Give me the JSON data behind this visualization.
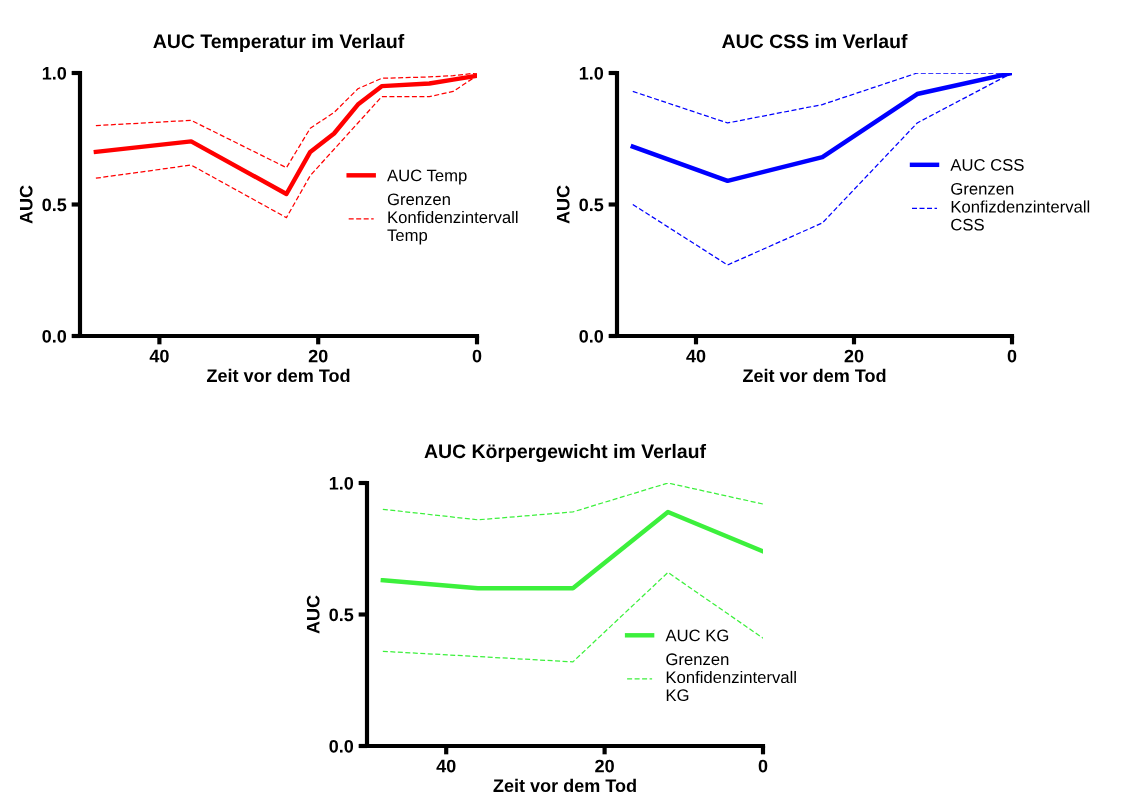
{
  "chart_data": [
    {
      "type": "line",
      "title": "AUC Temperatur im Verlauf",
      "xlabel": "Zeit vor dem Tod",
      "ylabel": "AUC",
      "xlim": [
        50,
        0
      ],
      "xticks": [
        40,
        20,
        0
      ],
      "ylim": [
        0,
        1
      ],
      "yticks": [
        {
          "value": 0,
          "label": "0.0"
        },
        {
          "value": 0.5,
          "label": "0.5"
        },
        {
          "value": 1,
          "label": "1.0"
        }
      ],
      "grid": false,
      "legend": "right",
      "marker": "none",
      "x": [
        48,
        36,
        24,
        21,
        18,
        15,
        12,
        6,
        3,
        0
      ],
      "series": [
        {
          "name": "AUC Temp",
          "color": "#ff0000",
          "line_style": "solid",
          "values": [
            0.7,
            0.74,
            0.54,
            0.7,
            0.77,
            0.88,
            0.95,
            0.96,
            0.975,
            0.99
          ]
        },
        {
          "name": "Grenzen\nKonfidenzintervall\nTemp",
          "color": "#ff0000",
          "line_style": "dashed",
          "values": [
            0.8,
            0.82,
            0.64,
            0.79,
            0.85,
            0.94,
            0.98,
            0.985,
            0.99,
            1.0
          ]
        },
        {
          "color": "#ff0000",
          "line_style": "dashed",
          "values": [
            0.6,
            0.65,
            0.45,
            0.61,
            0.71,
            0.81,
            0.91,
            0.91,
            0.93,
            0.99
          ]
        }
      ]
    },
    {
      "type": "line",
      "title": "AUC CSS im Verlauf",
      "xlabel": "Zeit vor dem Tod",
      "ylabel": "AUC",
      "xlim": [
        50,
        0
      ],
      "xticks": [
        40,
        20,
        0
      ],
      "ylim": [
        0,
        1
      ],
      "yticks": [
        {
          "value": 0,
          "label": "0.0"
        },
        {
          "value": 0.5,
          "label": "0.5"
        },
        {
          "value": 1,
          "label": "1.0"
        }
      ],
      "grid": false,
      "legend": "right",
      "marker": "none",
      "x": [
        48,
        36,
        24,
        12,
        0
      ],
      "series": [
        {
          "name": "AUC CSS",
          "color": "#0000ff",
          "line_style": "solid",
          "values": [
            0.72,
            0.59,
            0.68,
            0.92,
            1.0
          ]
        },
        {
          "name": "Grenzen\nKonfizdenzintervall\nCSS",
          "color": "#0000ff",
          "line_style": "dashed",
          "values": [
            0.93,
            0.81,
            0.88,
            1.0,
            1.0
          ]
        },
        {
          "color": "#0000ff",
          "line_style": "dashed",
          "values": [
            0.5,
            0.27,
            0.43,
            0.81,
            1.0
          ]
        }
      ]
    },
    {
      "type": "line",
      "title": "AUC Körpergewicht im Verlauf",
      "xlabel": "Zeit vor dem Tod",
      "ylabel": "AUC",
      "xlim": [
        50,
        0
      ],
      "xticks": [
        40,
        20,
        0
      ],
      "ylim": [
        0,
        1
      ],
      "yticks": [
        {
          "value": 0,
          "label": "0.0"
        },
        {
          "value": 0.5,
          "label": "0.5"
        },
        {
          "value": 1,
          "label": "1.0"
        }
      ],
      "grid": false,
      "legend": "lower right",
      "marker": "none",
      "x": [
        48,
        36,
        24,
        12,
        0
      ],
      "series": [
        {
          "name": "AUC KG",
          "color": "#3cf03c",
          "line_style": "solid",
          "values": [
            0.63,
            0.6,
            0.6,
            0.89,
            0.74
          ]
        },
        {
          "name": "Grenzen\nKonfidenzintervall\nKG",
          "color": "#3cf03c",
          "line_style": "dashed",
          "values": [
            0.9,
            0.86,
            0.89,
            1.0,
            0.92
          ]
        },
        {
          "color": "#3cf03c",
          "line_style": "dashed",
          "values": [
            0.36,
            0.34,
            0.32,
            0.66,
            0.41
          ]
        }
      ]
    }
  ]
}
